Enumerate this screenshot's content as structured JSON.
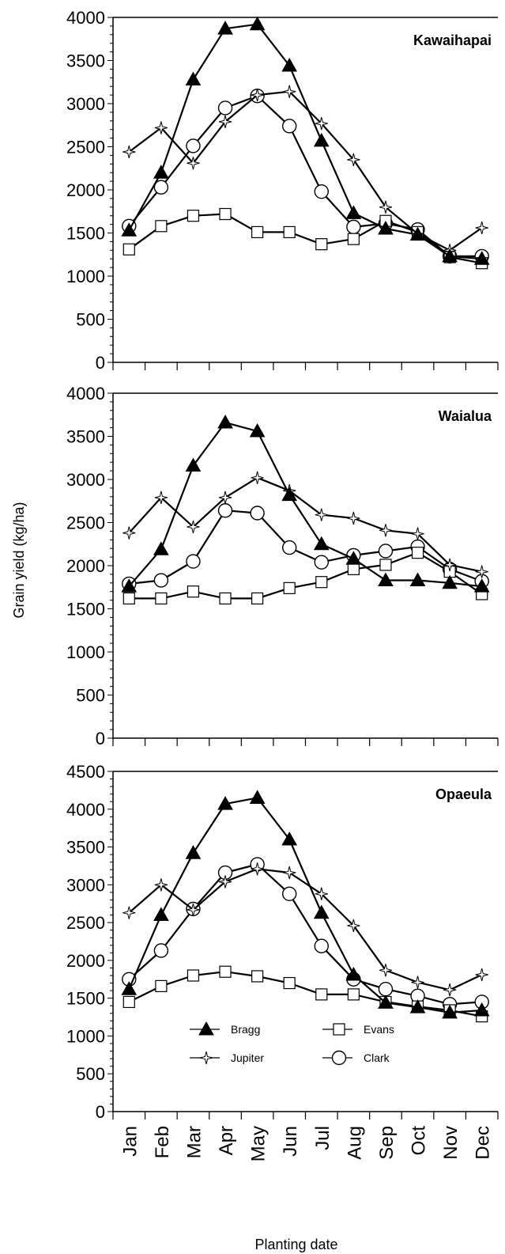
{
  "y_axis_label": "Grain yield (kg/ha)",
  "x_axis_label": "Planting date",
  "legend": [
    {
      "name": "Bragg",
      "marker": "filled-triangle"
    },
    {
      "name": "Evans",
      "marker": "open-square"
    },
    {
      "name": "Jupiter",
      "marker": "open-star"
    },
    {
      "name": "Clark",
      "marker": "open-circle"
    }
  ],
  "chart_data": [
    {
      "type": "line",
      "title": "Kawaihapai",
      "categories": [
        "Jan",
        "Feb",
        "Mar",
        "Apr",
        "May",
        "Jun",
        "Jul",
        "Aug",
        "Sep",
        "Oct",
        "Nov",
        "Dec"
      ],
      "ylim": [
        0,
        4000
      ],
      "yticks": [
        "0",
        "500",
        "1000",
        "1500",
        "2000",
        "2500",
        "3000",
        "3500",
        "4000"
      ],
      "series": [
        {
          "name": "Bragg",
          "values": [
            1530,
            2200,
            3280,
            3870,
            3920,
            3440,
            2570,
            1730,
            1550,
            1480,
            1230,
            1200
          ]
        },
        {
          "name": "Evans",
          "values": [
            1310,
            1580,
            1700,
            1720,
            1510,
            1510,
            1370,
            1430,
            1640,
            1510,
            1220,
            1150
          ]
        },
        {
          "name": "Jupiter",
          "values": [
            2440,
            2720,
            2310,
            2790,
            3100,
            3140,
            2770,
            2350,
            1800,
            1490,
            1300,
            1560
          ]
        },
        {
          "name": "Clark",
          "values": [
            1580,
            2030,
            2510,
            2950,
            3090,
            2740,
            1980,
            1570,
            1610,
            1540,
            1230,
            1230
          ]
        }
      ]
    },
    {
      "type": "line",
      "title": "Waialua",
      "categories": [
        "Jan",
        "Feb",
        "Mar",
        "Apr",
        "May",
        "Jun",
        "Jul",
        "Aug",
        "Sep",
        "Oct",
        "Nov",
        "Dec"
      ],
      "ylim": [
        0,
        4000
      ],
      "yticks": [
        "0",
        "500",
        "1000",
        "1500",
        "2000",
        "2500",
        "3000",
        "3500",
        "4000"
      ],
      "series": [
        {
          "name": "Bragg",
          "values": [
            1760,
            2190,
            3160,
            3660,
            3560,
            2820,
            2250,
            2080,
            1830,
            1830,
            1800,
            1760
          ]
        },
        {
          "name": "Evans",
          "values": [
            1620,
            1620,
            1700,
            1620,
            1620,
            1740,
            1810,
            1960,
            2010,
            2150,
            1930,
            1670
          ]
        },
        {
          "name": "Jupiter",
          "values": [
            2380,
            2790,
            2450,
            2790,
            3020,
            2870,
            2590,
            2550,
            2410,
            2370,
            2010,
            1930
          ]
        },
        {
          "name": "Clark",
          "values": [
            1790,
            1830,
            2050,
            2640,
            2610,
            2210,
            2040,
            2120,
            2170,
            2220,
            1960,
            1820
          ]
        }
      ]
    },
    {
      "type": "line",
      "title": "Opaeula",
      "categories": [
        "Jan",
        "Feb",
        "Mar",
        "Apr",
        "May",
        "Jun",
        "Jul",
        "Aug",
        "Sep",
        "Oct",
        "Nov",
        "Dec"
      ],
      "ylim": [
        0,
        4500
      ],
      "yticks": [
        "0",
        "500",
        "1000",
        "1500",
        "2000",
        "2500",
        "3000",
        "3500",
        "4000",
        "4500"
      ],
      "series": [
        {
          "name": "Bragg",
          "values": [
            1620,
            2600,
            3420,
            4070,
            4150,
            3600,
            2630,
            1810,
            1440,
            1380,
            1310,
            1340
          ]
        },
        {
          "name": "Evans",
          "values": [
            1450,
            1660,
            1800,
            1850,
            1790,
            1700,
            1550,
            1550,
            1450,
            1390,
            1340,
            1260
          ]
        },
        {
          "name": "Jupiter",
          "values": [
            2630,
            3000,
            2670,
            3040,
            3210,
            3160,
            2880,
            2460,
            1870,
            1710,
            1610,
            1810
          ]
        },
        {
          "name": "Clark",
          "values": [
            1750,
            2130,
            2680,
            3160,
            3270,
            2880,
            2190,
            1750,
            1620,
            1530,
            1420,
            1450
          ]
        }
      ]
    }
  ]
}
